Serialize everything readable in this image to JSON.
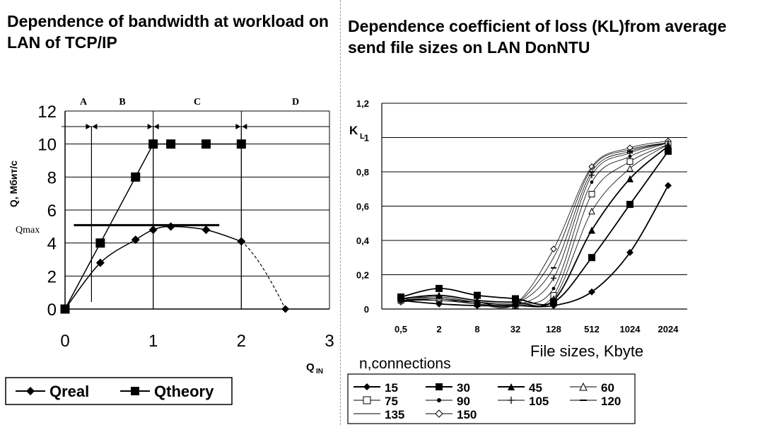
{
  "left": {
    "title": "Dependence of bandwidth at workload on LAN of TCP/IP",
    "chart_data": {
      "type": "line",
      "title": "Dependence of bandwidth at workload on LAN of TCP/IP",
      "xlabel": "Q",
      "xlabel_sub": "IN",
      "ylabel": "Q, Мбит/с",
      "xlim": [
        0,
        3
      ],
      "ylim": [
        0,
        12
      ],
      "x_ticks": [
        "0",
        "1",
        "2",
        "3"
      ],
      "y_ticks": [
        "0",
        "2",
        "4",
        "6",
        "8",
        "10",
        "12"
      ],
      "grid": true,
      "series": [
        {
          "name": "Qreal",
          "marker": "diamond",
          "points": [
            [
              0,
              0
            ],
            [
              0.4,
              2.8
            ],
            [
              0.8,
              4.2
            ],
            [
              1.0,
              4.8
            ],
            [
              1.2,
              5.0
            ],
            [
              1.6,
              4.8
            ],
            [
              2.0,
              4.1
            ]
          ],
          "extension": [
            [
              2.0,
              4.1
            ],
            [
              2.5,
              0
            ]
          ]
        },
        {
          "name": "Qtheory",
          "marker": "square",
          "points": [
            [
              0,
              0
            ],
            [
              0.4,
              4.0
            ],
            [
              0.8,
              8.0
            ],
            [
              1.0,
              10.0
            ],
            [
              1.2,
              10.0
            ],
            [
              1.6,
              10.0
            ],
            [
              2.0,
              10.0
            ]
          ]
        }
      ],
      "qmax": {
        "label": "Qmax",
        "value": 5.0,
        "x_range": [
          0.1,
          1.75
        ]
      },
      "zones": [
        {
          "label": "A",
          "x_range": [
            0,
            0.3
          ]
        },
        {
          "label": "B",
          "x_range": [
            0.3,
            1.0
          ]
        },
        {
          "label": "C",
          "x_range": [
            1.0,
            2.0
          ]
        },
        {
          "label": "D",
          "x_range": [
            2.0,
            3.0
          ]
        }
      ],
      "legend": {
        "position": "bottom-left",
        "entries": [
          "Qreal",
          "Qtheory"
        ]
      }
    }
  },
  "right": {
    "title": "Dependence coefficient of loss (KL)from average send file sizes on LAN DonNTU",
    "chart_data": {
      "type": "line",
      "title": "Dependence coefficient of loss (KL)from average send file sizes on LAN DonNTU",
      "xlabel": "File sizes, Kbyte",
      "ylabel": "K",
      "ylabel_sub": "L",
      "categories": [
        "0,5",
        "2",
        "8",
        "32",
        "128",
        "512",
        "1024",
        "2024"
      ],
      "y_ticks": [
        "0",
        "0,2",
        "0,4",
        "0,6",
        "0,8",
        "1",
        "1,2"
      ],
      "ylim": [
        0,
        1.2
      ],
      "grid": true,
      "legend_title": "n,connections",
      "legend": {
        "position": "bottom"
      },
      "series": [
        {
          "name": "15",
          "marker": "diamond-filled",
          "values": [
            0.05,
            0.03,
            0.02,
            0.02,
            0.02,
            0.1,
            0.33,
            0.72
          ]
        },
        {
          "name": "30",
          "marker": "square-filled",
          "values": [
            0.07,
            0.12,
            0.08,
            0.06,
            0.04,
            0.3,
            0.61,
            0.92
          ]
        },
        {
          "name": "45",
          "marker": "triangle-filled",
          "values": [
            0.06,
            0.08,
            0.05,
            0.04,
            0.05,
            0.46,
            0.76,
            0.95
          ]
        },
        {
          "name": "60",
          "marker": "triangle-open",
          "values": [
            0.06,
            0.05,
            0.04,
            0.03,
            0.06,
            0.57,
            0.82,
            0.96
          ]
        },
        {
          "name": "75",
          "marker": "square-open",
          "values": [
            0.05,
            0.06,
            0.03,
            0.02,
            0.08,
            0.67,
            0.86,
            0.96
          ]
        },
        {
          "name": "90",
          "marker": "dot",
          "values": [
            0.06,
            0.07,
            0.04,
            0.03,
            0.12,
            0.74,
            0.89,
            0.97
          ]
        },
        {
          "name": "105",
          "marker": "plus",
          "values": [
            0.05,
            0.05,
            0.03,
            0.02,
            0.18,
            0.78,
            0.91,
            0.97
          ]
        },
        {
          "name": "120",
          "marker": "dash",
          "values": [
            0.05,
            0.06,
            0.04,
            0.03,
            0.24,
            0.8,
            0.92,
            0.97
          ]
        },
        {
          "name": "135",
          "marker": "line",
          "values": [
            0.05,
            0.07,
            0.04,
            0.03,
            0.3,
            0.82,
            0.93,
            0.97
          ]
        },
        {
          "name": "150",
          "marker": "diamond-open",
          "values": [
            0.04,
            0.06,
            0.03,
            0.03,
            0.35,
            0.83,
            0.94,
            0.98
          ]
        }
      ]
    }
  }
}
